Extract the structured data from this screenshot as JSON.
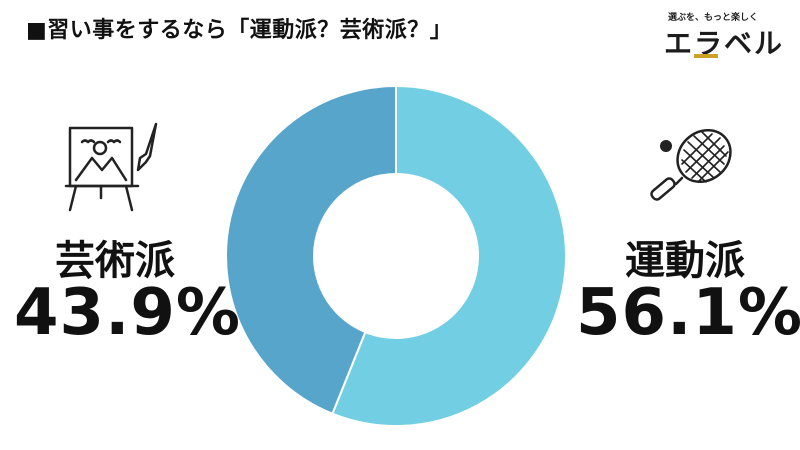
{
  "title": "■習い事をするなら「運動派？芸術派？」",
  "logo": {
    "tagline": "選ぶを、もっと楽しく",
    "name": "エラベル",
    "accent_color": "#c9a227"
  },
  "icons": {
    "left": "easel-painting-icon",
    "right": "tennis-racket-icon"
  },
  "chart_data": {
    "type": "pie",
    "donut": true,
    "title": "",
    "categories": [
      "運動派",
      "芸術派"
    ],
    "values": [
      56.1,
      43.9
    ],
    "value_labels": [
      "56.1%",
      "43.9%"
    ],
    "colors": [
      "#72cfe3",
      "#58a5cc"
    ],
    "start_angle": "12 o'clock",
    "direction": "clockwise"
  }
}
